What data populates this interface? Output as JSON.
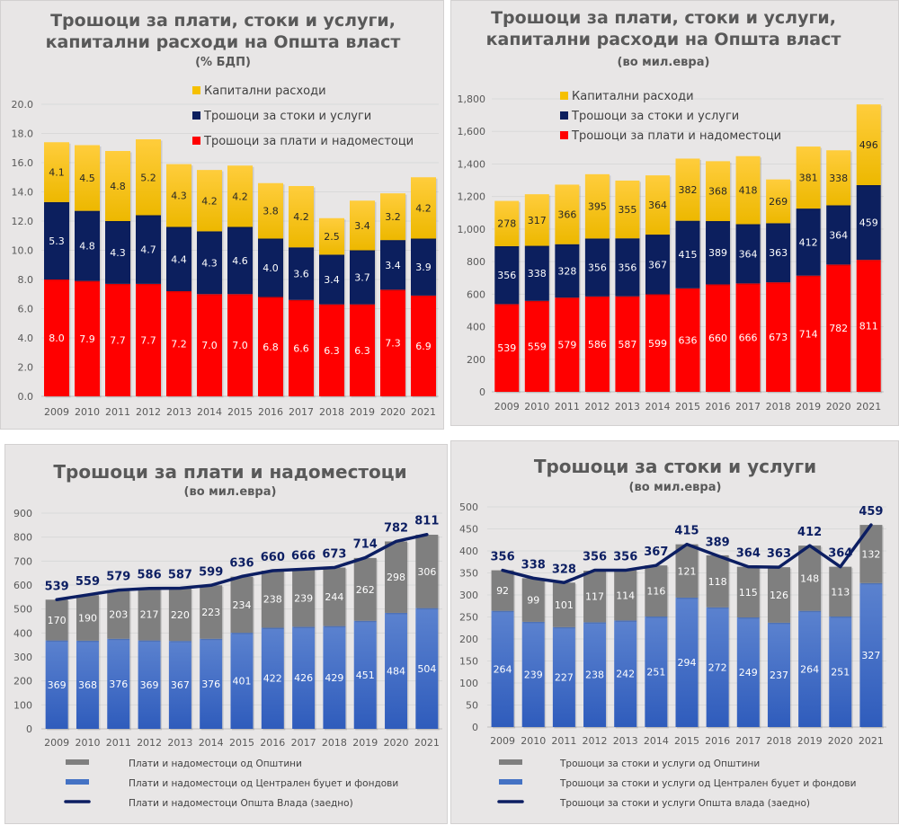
{
  "colors": {
    "capital": "#f5c000",
    "goods": "#0c1f5e",
    "wages": "#ff0000",
    "municipal": "#7f7f7f",
    "central": "#4472c4",
    "total_line": "#0c1e62"
  },
  "chart_data": [
    {
      "id": "gdp_share",
      "type": "bar",
      "stacked": true,
      "title_lines": [
        "Трошоци за плати, стоки и услуги,",
        "капитални расходи на Општа власт"
      ],
      "subtitle": "(% БДП)",
      "categories": [
        "2009",
        "2010",
        "2011",
        "2012",
        "2013",
        "2014",
        "2015",
        "2016",
        "2017",
        "2018",
        "2019",
        "2020",
        "2021"
      ],
      "ylim": [
        0,
        20
      ],
      "yticks": [
        0,
        2,
        4,
        6,
        8,
        10,
        12,
        14,
        16,
        18,
        20
      ],
      "ytick_labels": [
        "0.0",
        "2.0",
        "4.0",
        "6.0",
        "8.0",
        "10.0",
        "12.0",
        "14.0",
        "16.0",
        "18.0",
        "20.0"
      ],
      "grid": true,
      "legend_position": "top-right",
      "series": [
        {
          "name": "Трошоци за плати и надоместоци",
          "color_key": "wages",
          "label_color": "#ffffff",
          "values": [
            8.0,
            7.9,
            7.7,
            7.7,
            7.2,
            7.0,
            7.0,
            6.8,
            6.6,
            6.3,
            6.3,
            7.3,
            6.9
          ],
          "labels": [
            "8.0",
            "7.9",
            "7.7",
            "7.7",
            "7.2",
            "7.0",
            "7.0",
            "6.8",
            "6.6",
            "6.3",
            "6.3",
            "7.3",
            "6.9"
          ]
        },
        {
          "name": "Трошоци за стоки и услуги",
          "color_key": "goods",
          "label_color": "#ffffff",
          "values": [
            5.3,
            4.8,
            4.3,
            4.7,
            4.4,
            4.3,
            4.6,
            4.0,
            3.6,
            3.4,
            3.7,
            3.4,
            3.9
          ],
          "labels": [
            "5.3",
            "4.8",
            "4.3",
            "4.7",
            "4.4",
            "4.3",
            "4.6",
            "4.0",
            "3.6",
            "3.4",
            "3.7",
            "3.4",
            "3.9"
          ]
        },
        {
          "name": "Капитални расходи",
          "color_key": "capital",
          "label_color": "#262626",
          "values": [
            4.1,
            4.5,
            4.8,
            5.2,
            4.3,
            4.2,
            4.2,
            3.8,
            4.2,
            2.5,
            3.4,
            3.2,
            4.2
          ],
          "labels": [
            "4.1",
            "4.5",
            "4.8",
            "5.2",
            "4.3",
            "4.2",
            "4.2",
            "3.8",
            "4.2",
            "2.5",
            "3.4",
            "3.2",
            "4.2"
          ]
        }
      ],
      "legend_order": [
        2,
        1,
        0
      ]
    },
    {
      "id": "mil_eur",
      "type": "bar",
      "stacked": true,
      "title_lines": [
        "Трошоци за плати, стоки и услуги,",
        "капитални расходи на Општа власт"
      ],
      "subtitle": "(во мил.евра)",
      "categories": [
        "2009",
        "2010",
        "2011",
        "2012",
        "2013",
        "2014",
        "2015",
        "2016",
        "2017",
        "2018",
        "2019",
        "2020",
        "2021"
      ],
      "ylim": [
        0,
        1800
      ],
      "yticks": [
        0,
        200,
        400,
        600,
        800,
        1000,
        1200,
        1400,
        1600,
        1800
      ],
      "ytick_labels": [
        "0",
        "200",
        "400",
        "600",
        "800",
        "1,000",
        "1,200",
        "1,400",
        "1,600",
        "1,800"
      ],
      "grid": true,
      "legend_position": "top-left",
      "series": [
        {
          "name": "Трошоци за плати и надоместоци",
          "color_key": "wages",
          "label_color": "#ffffff",
          "values": [
            539,
            559,
            579,
            586,
            587,
            599,
            636,
            660,
            666,
            673,
            714,
            782,
            811
          ],
          "labels": [
            "539",
            "559",
            "579",
            "586",
            "587",
            "599",
            "636",
            "660",
            "666",
            "673",
            "714",
            "782",
            "811"
          ]
        },
        {
          "name": "Трошоци за стоки и услуги",
          "color_key": "goods",
          "label_color": "#ffffff",
          "values": [
            356,
            338,
            328,
            356,
            356,
            367,
            415,
            389,
            364,
            363,
            412,
            364,
            459
          ],
          "labels": [
            "356",
            "338",
            "328",
            "356",
            "356",
            "367",
            "415",
            "389",
            "364",
            "363",
            "412",
            "364",
            "459"
          ]
        },
        {
          "name": "Капитални расходи",
          "color_key": "capital",
          "label_color": "#262626",
          "values": [
            278,
            317,
            366,
            395,
            355,
            364,
            382,
            368,
            418,
            269,
            381,
            338,
            496
          ],
          "labels": [
            "278",
            "317",
            "366",
            "395",
            "355",
            "364",
            "382",
            "368",
            "418",
            "269",
            "381",
            "338",
            "496"
          ]
        }
      ],
      "legend_order": [
        2,
        1,
        0
      ]
    },
    {
      "id": "wages",
      "type": "bar",
      "stacked": true,
      "title_lines": [
        "Трошоци за плати и надоместоци"
      ],
      "subtitle": "(во мил.евра)",
      "categories": [
        "2009",
        "2010",
        "2011",
        "2012",
        "2013",
        "2014",
        "2015",
        "2016",
        "2017",
        "2018",
        "2019",
        "2020",
        "2021"
      ],
      "ylim": [
        0,
        900
      ],
      "yticks": [
        0,
        100,
        200,
        300,
        400,
        500,
        600,
        700,
        800,
        900
      ],
      "ytick_labels": [
        "0",
        "100",
        "200",
        "300",
        "400",
        "500",
        "600",
        "700",
        "800",
        "900"
      ],
      "grid": true,
      "legend_position": "bottom",
      "series": [
        {
          "name": "Плати и надоместоци  од Централен буџет и фондови",
          "color_key": "central",
          "label_color": "#ffffff",
          "values": [
            369,
            368,
            376,
            369,
            367,
            376,
            401,
            422,
            426,
            429,
            451,
            484,
            504
          ],
          "labels": [
            "369",
            "368",
            "376",
            "369",
            "367",
            "376",
            "401",
            "422",
            "426",
            "429",
            "451",
            "484",
            "504"
          ]
        },
        {
          "name": "Плати и надоместоци од Општини",
          "color_key": "municipal",
          "label_color": "#ffffff",
          "values": [
            170,
            190,
            203,
            217,
            220,
            223,
            234,
            238,
            239,
            244,
            262,
            298,
            306
          ],
          "labels": [
            "170",
            "190",
            "203",
            "217",
            "220",
            "223",
            "234",
            "238",
            "239",
            "244",
            "262",
            "298",
            "306"
          ]
        }
      ],
      "line": {
        "name": "Плати и надоместоци Општа Влада (заедно)",
        "color_key": "total_line",
        "values": [
          539,
          559,
          579,
          586,
          587,
          599,
          636,
          660,
          666,
          673,
          714,
          782,
          811
        ],
        "labels": [
          "539",
          "559",
          "579",
          "586",
          "587",
          "599",
          "636",
          "660",
          "666",
          "673",
          "714",
          "782",
          "811"
        ]
      },
      "legend_order": [
        1,
        0
      ]
    },
    {
      "id": "goods",
      "type": "bar",
      "stacked": true,
      "title_lines": [
        "Трошоци за стоки и услуги"
      ],
      "subtitle": "(во мил.евра)",
      "categories": [
        "2009",
        "2010",
        "2011",
        "2012",
        "2013",
        "2014",
        "2015",
        "2016",
        "2017",
        "2018",
        "2019",
        "2020",
        "2021"
      ],
      "ylim": [
        0,
        500
      ],
      "yticks": [
        0,
        50,
        100,
        150,
        200,
        250,
        300,
        350,
        400,
        450,
        500
      ],
      "ytick_labels": [
        "0",
        "50",
        "100",
        "150",
        "200",
        "250",
        "300",
        "350",
        "400",
        "450",
        "500"
      ],
      "grid": true,
      "legend_position": "bottom",
      "series": [
        {
          "name": "Трошоци за стоки и услуги од Централен буџет и фондови",
          "color_key": "central",
          "label_color": "#ffffff",
          "values": [
            264,
            239,
            227,
            238,
            242,
            251,
            294,
            272,
            249,
            237,
            264,
            251,
            327
          ],
          "labels": [
            "264",
            "239",
            "227",
            "238",
            "242",
            "251",
            "294",
            "272",
            "249",
            "237",
            "264",
            "251",
            "327"
          ]
        },
        {
          "name": "Трошоци за стоки и услуги од Општини",
          "color_key": "municipal",
          "label_color": "#ffffff",
          "values": [
            92,
            99,
            101,
            117,
            114,
            116,
            121,
            118,
            115,
            126,
            148,
            113,
            132
          ],
          "labels": [
            "92",
            "99",
            "101",
            "117",
            "114",
            "116",
            "121",
            "118",
            "115",
            "126",
            "148",
            "113",
            "132"
          ]
        }
      ],
      "line": {
        "name": "Трошоци за стоки и услуги Општа влада (заедно)",
        "color_key": "total_line",
        "values": [
          356,
          338,
          328,
          356,
          356,
          367,
          415,
          389,
          364,
          363,
          412,
          364,
          459
        ],
        "labels": [
          "356",
          "338",
          "328",
          "356",
          "356",
          "367",
          "415",
          "389",
          "364",
          "363",
          "412",
          "364",
          "459"
        ]
      },
      "legend_order": [
        1,
        0
      ]
    }
  ]
}
